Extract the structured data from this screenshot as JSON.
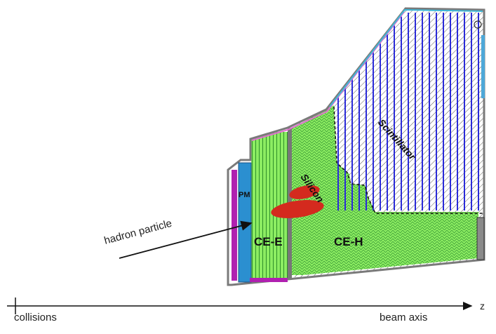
{
  "labels": {
    "pm": "PM",
    "ce_e": "CE-E",
    "ce_h": "CE-H",
    "silicon": "Silicon",
    "scintillator": "Scintillator",
    "hadron": "hadron particle",
    "collisions": "collisions",
    "beam_axis": "beam axis",
    "z": "z"
  },
  "colors": {
    "silicon_green": "#7ee85a",
    "scint_blue": "#2a2ad8",
    "pm_blue": "#2b8fd0",
    "magenta": "#b020b0",
    "shower_red": "#d42a1e",
    "frame_gray": "#8a8a8a"
  },
  "icons": {
    "arrow": "arrow-right-icon"
  }
}
